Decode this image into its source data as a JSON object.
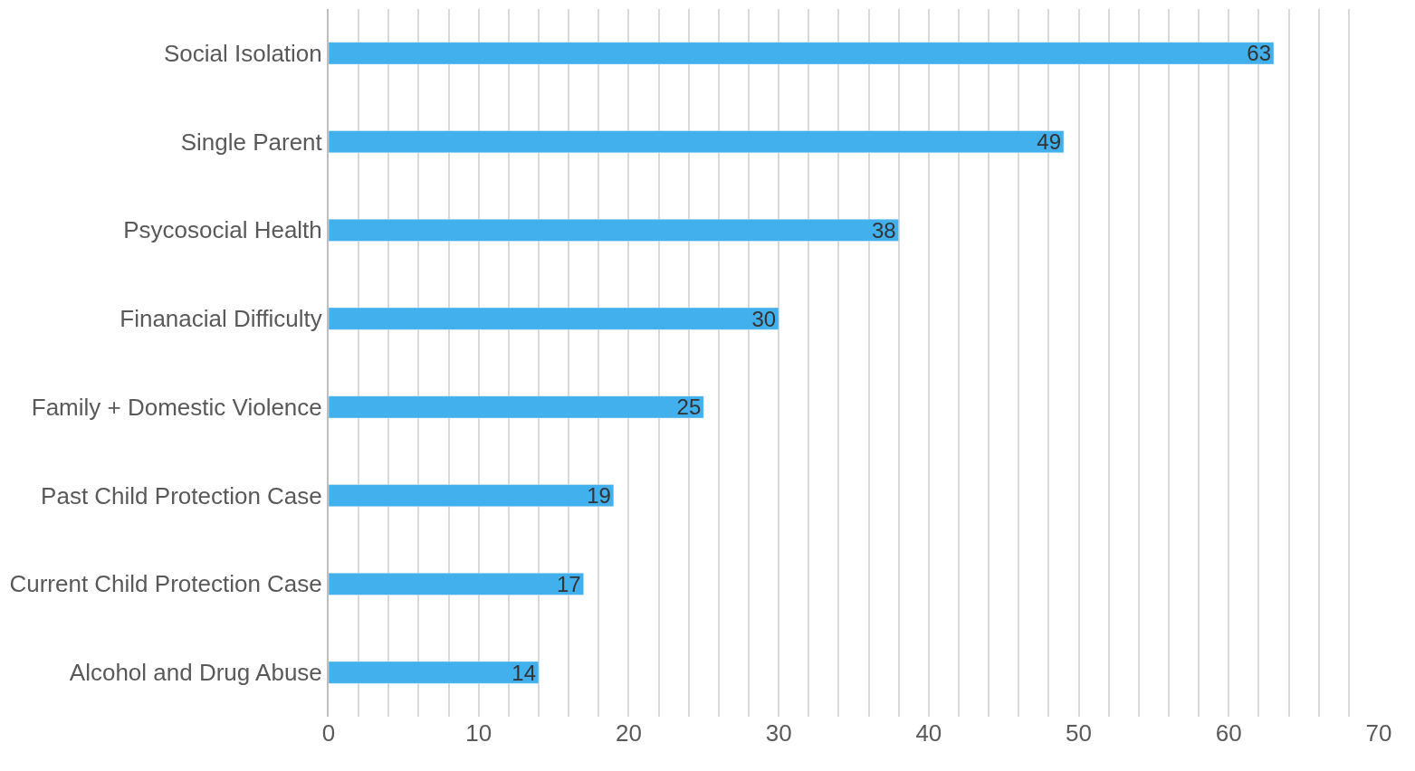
{
  "chart_data": {
    "type": "bar",
    "orientation": "horizontal",
    "categories": [
      "Social Isolation",
      "Single Parent",
      "Psycosocial Health",
      "Finanacial Difficulty",
      "Family + Domestic Violence",
      "Past Child Protection Case",
      "Current Child Protection Case",
      "Alcohol and Drug Abuse"
    ],
    "values": [
      63,
      49,
      38,
      30,
      25,
      19,
      17,
      14
    ],
    "color": "#41b0ec",
    "data_labels": true,
    "xlim": [
      0,
      70
    ],
    "xticks": [
      0,
      {
        "value": 2,
        "label": null
      },
      {
        "value": 4,
        "label": null
      },
      {
        "value": 6,
        "label": null
      },
      {
        "value": 8,
        "label": null
      },
      10,
      {
        "value": 12,
        "label": null
      },
      {
        "value": 14,
        "label": null
      },
      {
        "value": 16,
        "label": null
      },
      {
        "value": 18,
        "label": null
      },
      20,
      {
        "value": 22,
        "label": null
      },
      {
        "value": 24,
        "label": null
      },
      {
        "value": 26,
        "label": null
      },
      {
        "value": 28,
        "label": null
      },
      30,
      {
        "value": 32,
        "label": null
      },
      {
        "value": 34,
        "label": null
      },
      {
        "value": 36,
        "label": null
      },
      {
        "value": 38,
        "label": null
      },
      40,
      {
        "value": 42,
        "label": null
      },
      {
        "value": 44,
        "label": null
      },
      {
        "value": 46,
        "label": null
      },
      {
        "value": 48,
        "label": null
      },
      50,
      {
        "value": 52,
        "label": null
      },
      {
        "value": 54,
        "label": null
      },
      {
        "value": 56,
        "label": null
      },
      {
        "value": 58,
        "label": null
      },
      60,
      {
        "value": 62,
        "label": null
      },
      {
        "value": 64,
        "label": null
      },
      {
        "value": 66,
        "label": null
      },
      {
        "value": 68,
        "label": null
      },
      70
    ],
    "grid": "x"
  }
}
